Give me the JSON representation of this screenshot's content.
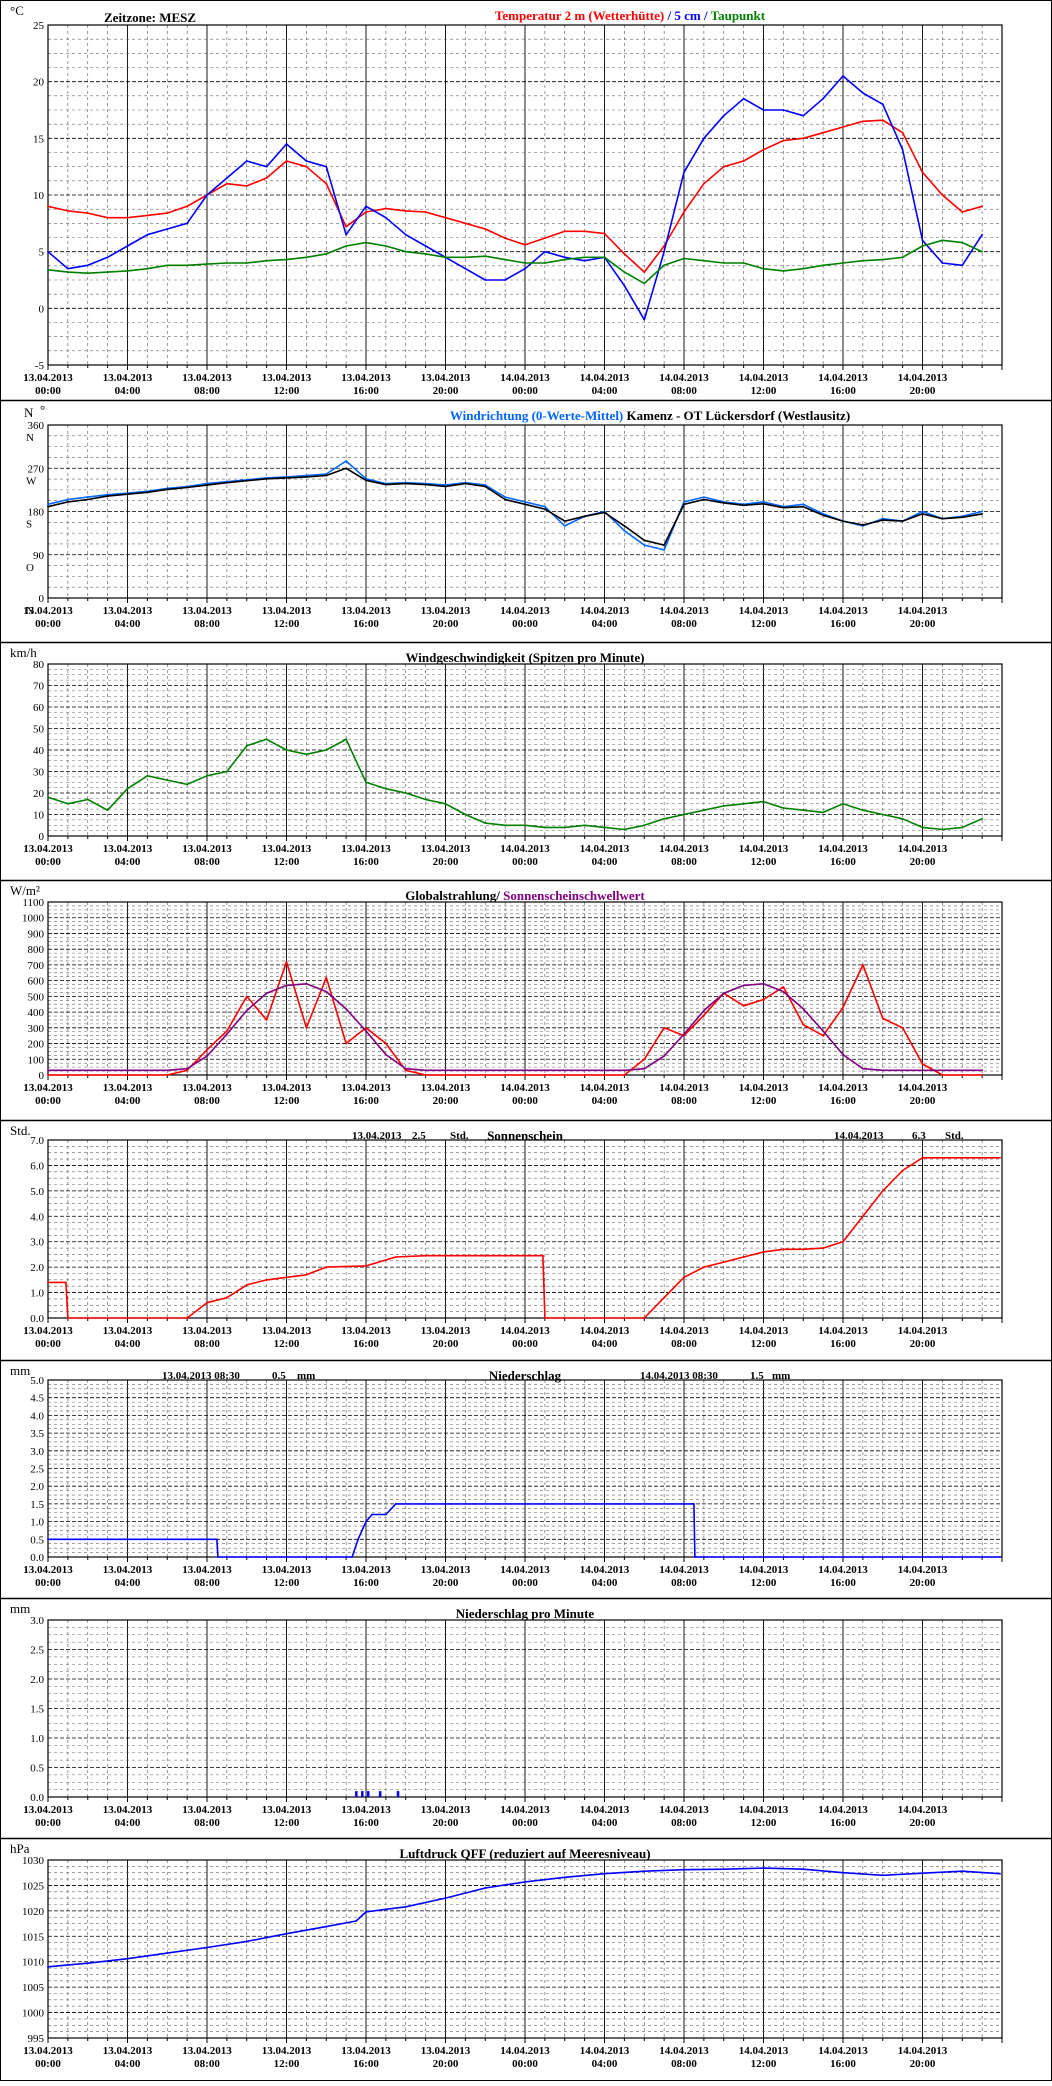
{
  "meta": {
    "timezone": "Zeitzone: MESZ",
    "x_dates": [
      "13.04.2013",
      "13.04.2013",
      "13.04.2013",
      "13.04.2013",
      "13.04.2013",
      "13.04.2013",
      "14.04.2013",
      "14.04.2013",
      "14.04.2013",
      "14.04.2013",
      "14.04.2013",
      "14.04.2013"
    ],
    "x_times": [
      "00:00",
      "04:00",
      "08:00",
      "12:00",
      "16:00",
      "20:00",
      "00:00",
      "04:00",
      "08:00",
      "12:00",
      "16:00",
      "20:00"
    ]
  },
  "chart_data": [
    {
      "type": "line",
      "unit": "°C",
      "ylim": [
        -5,
        25
      ],
      "yticks": [
        "25",
        "20",
        "15",
        "10",
        "5",
        "0",
        "-5"
      ],
      "title_parts": [
        {
          "text": "Temperatur 2 m (Wetterhütte)",
          "color": "#ff0000"
        },
        {
          "text": " / ",
          "color": "#0000ff"
        },
        {
          "text": "5 cm",
          "color": "#0000ff"
        },
        {
          "text": " / ",
          "color": "#0000ff"
        },
        {
          "text": "Taupunkt",
          "color": "#008000"
        }
      ],
      "grid": true,
      "x_hours": [
        0,
        1,
        2,
        3,
        4,
        5,
        6,
        7,
        8,
        9,
        10,
        11,
        12,
        13,
        14,
        15,
        16,
        17,
        18,
        19,
        20,
        21,
        22,
        23,
        24,
        25,
        26,
        27,
        28,
        29,
        30,
        31,
        32,
        33,
        34,
        35,
        36,
        37,
        38,
        39,
        40,
        41,
        42,
        43,
        44,
        45,
        46,
        47
      ],
      "series": [
        {
          "name": "Temperatur 2 m (Wetterhütte)",
          "color": "#ff0000",
          "values": [
            9.0,
            8.6,
            8.4,
            8.0,
            8.0,
            8.2,
            8.4,
            9.0,
            10.0,
            11.0,
            10.8,
            11.5,
            13.0,
            12.5,
            11.0,
            7.2,
            8.5,
            8.8,
            8.6,
            8.5,
            8.0,
            7.5,
            7.0,
            6.2,
            5.6,
            6.2,
            6.8,
            6.8,
            6.6,
            4.8,
            3.2,
            5.5,
            8.5,
            11.0,
            12.5,
            13.0,
            14.0,
            14.8,
            15.0,
            15.5,
            16.0,
            16.5,
            16.6,
            15.5,
            12.0,
            10.0,
            8.5,
            9.0
          ]
        },
        {
          "name": "5 cm",
          "color": "#0000ff",
          "values": [
            5.0,
            3.5,
            3.8,
            4.5,
            5.5,
            6.5,
            7.0,
            7.5,
            10.0,
            11.5,
            13.0,
            12.5,
            14.5,
            13.0,
            12.5,
            6.5,
            9.0,
            8.0,
            6.5,
            5.5,
            4.5,
            3.5,
            2.5,
            2.5,
            3.5,
            5.0,
            4.5,
            4.2,
            4.5,
            2.0,
            -1.0,
            5.0,
            12.0,
            15.0,
            17.0,
            18.5,
            17.5,
            17.5,
            17.0,
            18.5,
            20.5,
            19.0,
            18.0,
            14.0,
            6.0,
            4.0,
            3.8,
            6.5
          ]
        },
        {
          "name": "Taupunkt",
          "color": "#008000",
          "values": [
            3.4,
            3.2,
            3.1,
            3.2,
            3.3,
            3.5,
            3.8,
            3.8,
            3.9,
            4.0,
            4.0,
            4.2,
            4.3,
            4.5,
            4.8,
            5.5,
            5.8,
            5.5,
            5.0,
            4.8,
            4.5,
            4.5,
            4.6,
            4.3,
            4.0,
            4.0,
            4.3,
            4.5,
            4.5,
            3.2,
            2.2,
            3.8,
            4.4,
            4.2,
            4.0,
            4.0,
            3.5,
            3.3,
            3.5,
            3.8,
            4.0,
            4.2,
            4.3,
            4.5,
            5.5,
            6.0,
            5.8,
            5.0
          ]
        }
      ]
    },
    {
      "type": "line",
      "unit_left": "N",
      "unit_right": "°",
      "ylim": [
        0,
        360
      ],
      "yticks": [
        "360",
        "270",
        "180",
        "90",
        "0"
      ],
      "ydir_labels": [
        {
          "text": "N",
          "v": 360
        },
        {
          "text": "W",
          "v": 270
        },
        {
          "text": "S",
          "v": 180
        },
        {
          "text": "O",
          "v": 90
        },
        {
          "text": "N",
          "v": 0
        }
      ],
      "title_parts": [
        {
          "text": "Windrichtung (0-Werte-Mittel)",
          "color": "#0066ff"
        },
        {
          "text": "        Kamenz - OT Lückersdorf (Westlausitz)",
          "color": "#000000"
        }
      ],
      "grid": true,
      "x_hours": [
        0,
        1,
        2,
        3,
        4,
        5,
        6,
        7,
        8,
        9,
        10,
        11,
        12,
        13,
        14,
        15,
        16,
        17,
        18,
        19,
        20,
        21,
        22,
        23,
        24,
        25,
        26,
        27,
        28,
        29,
        30,
        31,
        32,
        33,
        34,
        35,
        36,
        37,
        38,
        39,
        40,
        41,
        42,
        43,
        44,
        45,
        46,
        47
      ],
      "series": [
        {
          "name": "Windrichtung (0-Werte-Mittel)",
          "color": "#0066ff",
          "values": [
            195,
            205,
            210,
            215,
            218,
            222,
            228,
            232,
            238,
            242,
            246,
            250,
            252,
            255,
            258,
            285,
            248,
            238,
            240,
            238,
            235,
            240,
            235,
            210,
            200,
            190,
            150,
            170,
            180,
            140,
            110,
            100,
            200,
            210,
            200,
            195,
            200,
            190,
            195,
            175,
            160,
            150,
            165,
            160,
            180,
            165,
            170,
            180
          ]
        },
        {
          "name": "",
          "color": "#000000",
          "values": [
            190,
            200,
            205,
            212,
            216,
            220,
            226,
            230,
            235,
            240,
            244,
            248,
            250,
            252,
            255,
            270,
            245,
            236,
            238,
            236,
            232,
            238,
            232,
            205,
            195,
            185,
            160,
            170,
            178,
            150,
            120,
            110,
            195,
            205,
            198,
            193,
            196,
            188,
            190,
            172,
            160,
            152,
            162,
            160,
            175,
            165,
            168,
            175
          ]
        }
      ]
    },
    {
      "type": "line",
      "unit": "km/h",
      "ylim": [
        0,
        80
      ],
      "yticks": [
        "80",
        "70",
        "60",
        "50",
        "40",
        "30",
        "20",
        "10",
        "0"
      ],
      "title_parts": [
        {
          "text": "Windgeschwindigkeit (Spitzen pro Minute)",
          "color": "#000000"
        }
      ],
      "grid": true,
      "x_hours": [
        0,
        1,
        2,
        3,
        4,
        5,
        6,
        7,
        8,
        9,
        10,
        11,
        12,
        13,
        14,
        15,
        16,
        17,
        18,
        19,
        20,
        21,
        22,
        23,
        24,
        25,
        26,
        27,
        28,
        29,
        30,
        31,
        32,
        33,
        34,
        35,
        36,
        37,
        38,
        39,
        40,
        41,
        42,
        43,
        44,
        45,
        46,
        47
      ],
      "series": [
        {
          "name": "Windgeschwindigkeit (Spitzen pro Minute)",
          "color": "#008000",
          "values": [
            18,
            15,
            17,
            12,
            22,
            28,
            26,
            24,
            28,
            30,
            42,
            45,
            40,
            38,
            40,
            45,
            25,
            22,
            20,
            17,
            15,
            10,
            6,
            5,
            5,
            4,
            4,
            5,
            4,
            3,
            5,
            8,
            10,
            12,
            14,
            15,
            16,
            13,
            12,
            11,
            15,
            12,
            10,
            8,
            4,
            3,
            4,
            8
          ]
        }
      ]
    },
    {
      "type": "line",
      "unit": "W/m²",
      "ylim": [
        0,
        1100
      ],
      "yticks": [
        "1100",
        "1000",
        "900",
        "800",
        "700",
        "600",
        "500",
        "400",
        "300",
        "200",
        "100",
        "0"
      ],
      "title_parts": [
        {
          "text": "Globalstrahlung",
          "color": "#000000"
        },
        {
          "text": "/ ",
          "color": "#000000"
        },
        {
          "text": "Sonnenscheinschwellwert",
          "color": "#800080"
        }
      ],
      "grid": true,
      "x_hours": [
        0,
        1,
        2,
        3,
        4,
        5,
        6,
        7,
        8,
        9,
        10,
        11,
        12,
        13,
        14,
        15,
        16,
        17,
        18,
        19,
        20,
        21,
        22,
        23,
        24,
        25,
        26,
        27,
        28,
        29,
        30,
        31,
        32,
        33,
        34,
        35,
        36,
        37,
        38,
        39,
        40,
        41,
        42,
        43,
        44,
        45,
        46,
        47
      ],
      "series": [
        {
          "name": "Globalstrahlung",
          "color": "#ff0000",
          "values": [
            0,
            0,
            0,
            0,
            0,
            0,
            0,
            30,
            160,
            280,
            500,
            350,
            720,
            300,
            620,
            200,
            300,
            200,
            30,
            0,
            0,
            0,
            0,
            0,
            0,
            0,
            0,
            0,
            0,
            0,
            100,
            300,
            250,
            380,
            520,
            440,
            480,
            560,
            320,
            250,
            430,
            700,
            360,
            300,
            70,
            0,
            0,
            0
          ]
        },
        {
          "name": "Sonnenscheinschwellwert",
          "color": "#800080",
          "values": [
            30,
            30,
            30,
            30,
            30,
            30,
            30,
            40,
            120,
            260,
            410,
            520,
            570,
            580,
            530,
            420,
            280,
            130,
            40,
            30,
            30,
            30,
            30,
            30,
            30,
            30,
            30,
            30,
            30,
            30,
            40,
            120,
            260,
            410,
            520,
            570,
            580,
            530,
            420,
            280,
            130,
            40,
            30,
            30,
            30,
            30,
            30,
            30
          ]
        }
      ]
    },
    {
      "type": "line",
      "unit": "Std.",
      "ylim": [
        0,
        7
      ],
      "yticks": [
        "7.0",
        "6.0",
        "5.0",
        "4.0",
        "3.0",
        "2.0",
        "1.0",
        "0.0"
      ],
      "title_parts": [
        {
          "text": "Sonnenschein",
          "color": "#000000"
        }
      ],
      "annotations": [
        {
          "date": "13.04.2013",
          "value": "2.5",
          "unit": "Std."
        },
        {
          "date": "14.04.2013",
          "value": "6.3",
          "unit": "Std."
        }
      ],
      "grid": true,
      "x_hours": [
        0,
        0.9,
        1.0,
        2,
        4,
        6,
        7.0,
        8,
        9,
        10,
        11,
        12,
        13,
        14,
        16,
        17.5,
        19,
        20,
        22,
        24,
        24.9,
        25.0,
        26,
        28,
        30,
        31,
        32,
        33,
        34,
        35,
        36,
        37,
        38,
        39,
        40,
        41,
        42,
        43,
        44,
        47.9
      ],
      "series": [
        {
          "name": "Sonnenschein",
          "color": "#ff0000",
          "values": [
            1.4,
            1.4,
            0,
            0,
            0,
            0,
            0,
            0.6,
            0.8,
            1.3,
            1.5,
            1.6,
            1.7,
            2.0,
            2.05,
            2.4,
            2.45,
            2.45,
            2.45,
            2.45,
            2.45,
            0,
            0,
            0,
            0,
            0.8,
            1.6,
            2.0,
            2.2,
            2.4,
            2.6,
            2.7,
            2.7,
            2.75,
            3.0,
            4.0,
            5.0,
            5.8,
            6.3,
            6.3
          ]
        }
      ]
    },
    {
      "type": "line",
      "unit": "mm",
      "ylim": [
        0,
        5
      ],
      "yticks": [
        "5.0",
        "4.5",
        "4.0",
        "3.5",
        "3.0",
        "2.5",
        "2.0",
        "1.5",
        "1.0",
        "0.5",
        "0.0"
      ],
      "title_parts": [
        {
          "text": "Niederschlag",
          "color": "#000000"
        }
      ],
      "annotations": [
        {
          "date": "13.04.2013 08:30",
          "value": "0.5",
          "unit": "mm"
        },
        {
          "date": "14.04.2013 08:30",
          "value": "1.5",
          "unit": "mm"
        }
      ],
      "grid": true,
      "x_hours": [
        0,
        8.5,
        8.55,
        15.3,
        15.6,
        16.0,
        16.3,
        17.0,
        17.5,
        32.5,
        32.55,
        47.9
      ],
      "series": [
        {
          "name": "Niederschlag",
          "color": "#0000ff",
          "values": [
            0.5,
            0.5,
            0,
            0,
            0.5,
            1.0,
            1.2,
            1.2,
            1.5,
            1.5,
            0,
            0
          ]
        }
      ]
    },
    {
      "type": "bar",
      "unit": "mm",
      "ylim": [
        0,
        3
      ],
      "yticks": [
        "3.0",
        "2.5",
        "2.0",
        "1.5",
        "1.0",
        "0.5",
        "0.0"
      ],
      "title_parts": [
        {
          "text": "Niederschlag pro Minute",
          "color": "#000000"
        }
      ],
      "grid": true,
      "x_hours": [
        15.5,
        15.8,
        16.1,
        16.7,
        17.6
      ],
      "series": [
        {
          "name": "Niederschlag pro Minute",
          "color": "#0000ff",
          "values": [
            0.1,
            0.1,
            0.1,
            0.1,
            0.1
          ]
        }
      ]
    },
    {
      "type": "line",
      "unit": "hPa",
      "ylim": [
        995,
        1030
      ],
      "yticks": [
        "1030",
        "1025",
        "1020",
        "1015",
        "1010",
        "1005",
        "1000",
        "995"
      ],
      "title_parts": [
        {
          "text": "Luftdruck QFF (reduziert auf Meeresniveau)",
          "color": "#000000"
        }
      ],
      "grid": true,
      "x_hours": [
        0,
        2,
        4,
        6,
        8,
        10,
        12,
        14,
        15.5,
        16,
        18,
        20,
        22,
        24,
        26,
        28,
        30,
        32,
        34,
        36,
        38,
        40,
        42,
        44,
        46,
        47.9
      ],
      "series": [
        {
          "name": "Luftdruck QFF (reduziert auf Meeresniveau)",
          "color": "#0000ff",
          "values": [
            1009,
            1009.7,
            1010.6,
            1011.7,
            1012.8,
            1014,
            1015.5,
            1016.9,
            1018,
            1019.8,
            1020.8,
            1022.5,
            1024.5,
            1025.7,
            1026.6,
            1027.3,
            1027.8,
            1028.1,
            1028.2,
            1028.4,
            1028.2,
            1027.5,
            1027.0,
            1027.4,
            1027.8,
            1027.3
          ]
        }
      ]
    }
  ]
}
